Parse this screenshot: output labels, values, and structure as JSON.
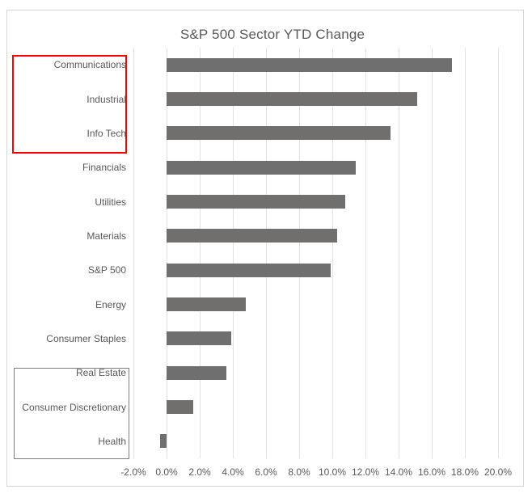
{
  "chart_data": {
    "type": "bar",
    "orientation": "horizontal",
    "title": "S&P 500 Sector YTD Change",
    "categories": [
      "Communications",
      "Industrial",
      "Info Tech",
      "Financials",
      "Utilities",
      "Materials",
      "S&P 500",
      "Energy",
      "Consumer Staples",
      "Real Estate",
      "Consumer Discretionary",
      "Health"
    ],
    "values": [
      17.2,
      15.1,
      13.5,
      11.4,
      10.8,
      10.3,
      9.9,
      4.8,
      3.9,
      3.6,
      1.6,
      -0.4
    ],
    "value_unit": "%",
    "xlim": [
      -2,
      20
    ],
    "x_ticks": [
      {
        "value": -2,
        "label": "-2.0%"
      },
      {
        "value": 0,
        "label": "0.0%"
      },
      {
        "value": 2,
        "label": "2.0%"
      },
      {
        "value": 4,
        "label": "4.0%"
      },
      {
        "value": 6,
        "label": "6.0%"
      },
      {
        "value": 8,
        "label": "8.0%"
      },
      {
        "value": 10,
        "label": "10.0%"
      },
      {
        "value": 12,
        "label": "12.0%"
      },
      {
        "value": 14,
        "label": "14.0%"
      },
      {
        "value": 16,
        "label": "16.0%"
      },
      {
        "value": 18,
        "label": "18.0%"
      },
      {
        "value": 20,
        "label": "20.0%"
      }
    ],
    "grid": true,
    "legend": "none",
    "colors": {
      "bar": "#716E6E",
      "gridline": "#E2E2E2",
      "text": "#595959",
      "chart_border": "#D6D6D6"
    }
  },
  "annotations": [
    {
      "id": "top-sectors-box",
      "shape": "rectangle",
      "border_color": "#FF0000",
      "covers": [
        "Communications",
        "Industrial",
        "Info Tech"
      ]
    },
    {
      "id": "bottom-sectors-box",
      "shape": "rectangle",
      "border_color": "#7F7F7F",
      "covers": [
        "Real Estate",
        "Consumer Discretionary",
        "Health"
      ]
    }
  ]
}
